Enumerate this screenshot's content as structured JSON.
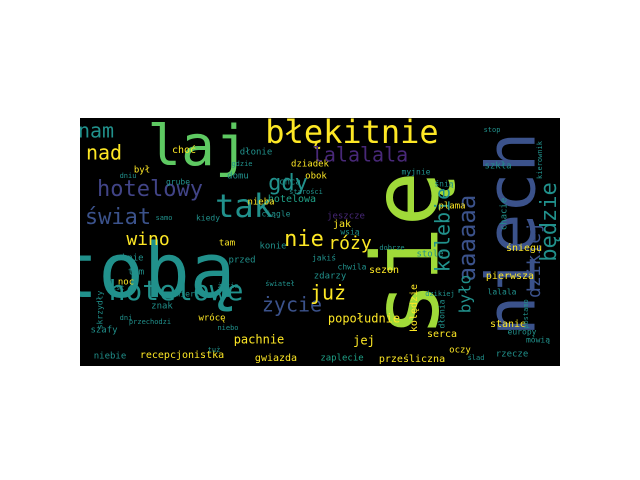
{
  "palette": {
    "background": "#000000",
    "yellow": "#fde725",
    "green": "#5ec962",
    "lime": "#a0da39",
    "teal": "#21918c",
    "cyan": "#1fa187",
    "blue": "#3b528b",
    "indigo": "#414487",
    "purple": "#440154",
    "violet": "#482878"
  },
  "words": [
    {
      "text": "tobą",
      "color": "teal"
    },
    {
      "text": "się",
      "color": "lime"
    },
    {
      "text": "niech",
      "color": "blue"
    },
    {
      "text": "laj",
      "color": "green"
    },
    {
      "text": "błękitnie",
      "color": "yellow"
    },
    {
      "text": "tak",
      "color": "teal"
    },
    {
      "text": "hotelowe",
      "color": "teal"
    },
    {
      "text": "hotelowy",
      "color": "indigo"
    },
    {
      "text": "świat",
      "color": "blue"
    },
    {
      "text": "nam",
      "color": "teal"
    },
    {
      "text": "nad",
      "color": "yellow"
    },
    {
      "text": "gdy",
      "color": "teal"
    },
    {
      "text": "lalalala",
      "color": "violet"
    },
    {
      "text": "nie",
      "color": "yellow"
    },
    {
      "text": "róży",
      "color": "yellow"
    },
    {
      "text": "wino",
      "color": "yellow"
    },
    {
      "text": "życie",
      "color": "blue"
    },
    {
      "text": "już",
      "color": "yellow"
    },
    {
      "text": "aaaaaa",
      "color": "blue"
    },
    {
      "text": "kolebie",
      "color": "teal"
    },
    {
      "text": "będzie",
      "color": "teal"
    },
    {
      "text": "dzikiej",
      "color": "blue"
    },
    {
      "text": "było",
      "color": "teal"
    },
    {
      "text": "popołudnie",
      "color": "yellow"
    },
    {
      "text": "jej",
      "color": "yellow"
    },
    {
      "text": "pachnie",
      "color": "yellow"
    },
    {
      "text": "recepcjonistka",
      "color": "yellow"
    },
    {
      "text": "gwiazda",
      "color": "yellow"
    },
    {
      "text": "zaplecie",
      "color": "cyan"
    },
    {
      "text": "prześliczna",
      "color": "yellow"
    },
    {
      "text": "choć",
      "color": "yellow"
    },
    {
      "text": "hotelowa",
      "color": "cyan"
    },
    {
      "text": "jak",
      "color": "yellow"
    },
    {
      "text": "dziadek",
      "color": "yellow"
    },
    {
      "text": "obok",
      "color": "yellow"
    },
    {
      "text": "chcą",
      "color": "teal"
    },
    {
      "text": "domu",
      "color": "teal"
    },
    {
      "text": "nieba",
      "color": "yellow"
    },
    {
      "text": "ciągle",
      "color": "teal"
    },
    {
      "text": "zdarzy",
      "color": "teal"
    },
    {
      "text": "sezon",
      "color": "yellow"
    },
    {
      "text": "kolędzie",
      "color": "yellow"
    },
    {
      "text": "serca",
      "color": "yellow"
    },
    {
      "text": "pierwsza",
      "color": "yellow"
    },
    {
      "text": "śniegu",
      "color": "yellow"
    },
    {
      "text": "stanie",
      "color": "yellow"
    },
    {
      "text": "oczy",
      "color": "yellow"
    },
    {
      "text": "europy",
      "color": "teal"
    },
    {
      "text": "mówią",
      "color": "teal"
    },
    {
      "text": "konie",
      "color": "teal"
    },
    {
      "text": "tam",
      "color": "yellow"
    },
    {
      "text": "kiedy",
      "color": "teal"
    },
    {
      "text": "przed",
      "color": "teal"
    },
    {
      "text": "zmierzch",
      "color": "teal"
    },
    {
      "text": "znak",
      "color": "teal"
    },
    {
      "text": "wrócę",
      "color": "yellow"
    },
    {
      "text": "tym",
      "color": "teal"
    },
    {
      "text": "noc",
      "color": "yellow"
    },
    {
      "text": "szafy",
      "color": "teal"
    },
    {
      "text": "niebie",
      "color": "teal"
    },
    {
      "text": "oknie",
      "color": "teal"
    },
    {
      "text": "jeszcze",
      "color": "violet"
    },
    {
      "text": "stole",
      "color": "teal"
    },
    {
      "text": "plama",
      "color": "yellow"
    },
    {
      "text": "chwila",
      "color": "teal"
    },
    {
      "text": "jakiś",
      "color": "teal"
    },
    {
      "text": "wsią",
      "color": "teal"
    },
    {
      "text": "dłonie",
      "color": "teal"
    },
    {
      "text": "był",
      "color": "yellow"
    },
    {
      "text": "grube",
      "color": "teal"
    },
    {
      "text": "myjnie",
      "color": "teal"
    },
    {
      "text": "śnią",
      "color": "teal"
    },
    {
      "text": "szkła",
      "color": "teal"
    },
    {
      "text": "chacie",
      "color": "teal"
    },
    {
      "text": "dłonia",
      "color": "teal"
    },
    {
      "text": "ślad",
      "color": "teal"
    },
    {
      "text": "lalala",
      "color": "teal"
    },
    {
      "text": "rzecze",
      "color": "teal"
    },
    {
      "text": "skrzydły",
      "color": "teal"
    },
    {
      "text": "dniu",
      "color": "teal"
    },
    {
      "text": "jest",
      "color": "teal"
    },
    {
      "text": "przechodzi",
      "color": "teal"
    },
    {
      "text": "gdzie",
      "color": "teal"
    },
    {
      "text": "życie",
      "color": "teal"
    },
    {
      "text": "stop",
      "color": "teal"
    },
    {
      "text": "kierownik",
      "color": "teal"
    },
    {
      "text": "postamo",
      "color": "teal"
    },
    {
      "text": "niebo",
      "color": "teal"
    },
    {
      "text": "dobrze",
      "color": "teal"
    },
    {
      "text": "starości",
      "color": "teal"
    },
    {
      "text": "świateł",
      "color": "teal"
    },
    {
      "text": "dzikiej",
      "color": "teal"
    },
    {
      "text": "tuż",
      "color": "teal"
    },
    {
      "text": "samo",
      "color": "teal"
    },
    {
      "text": "dni",
      "color": "teal"
    }
  ]
}
